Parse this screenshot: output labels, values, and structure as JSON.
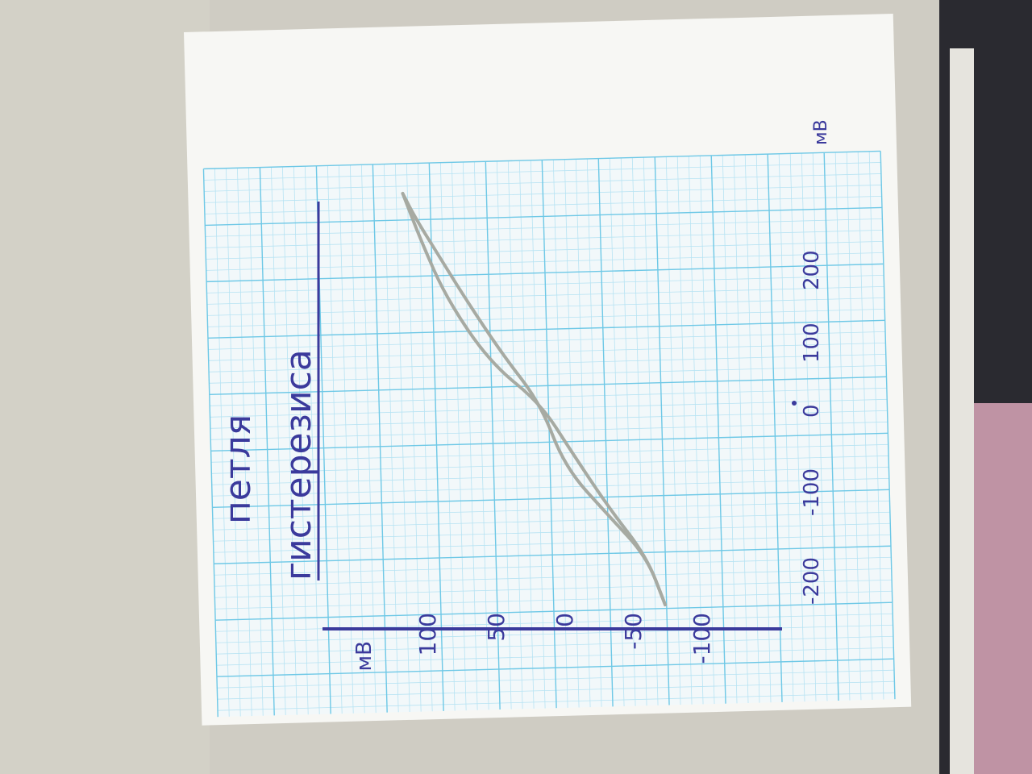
{
  "note": {
    "title_line1": "петля",
    "title_line2": "гистерезиса"
  },
  "chart_data": {
    "type": "line",
    "title": "петля гистерезиса",
    "xlabel": "мВ",
    "ylabel": "мВ",
    "x_ticks": [
      "-200",
      "-100",
      "0",
      "100",
      "200"
    ],
    "y_ticks": [
      "100",
      "50",
      "0",
      "-50",
      "-100"
    ],
    "xlim": [
      -300,
      300
    ],
    "ylim": [
      -110,
      110
    ],
    "series": [
      {
        "points": [
          [
            -250,
            -100
          ],
          [
            -190,
            -85
          ],
          [
            -140,
            -55
          ],
          [
            -80,
            -20
          ],
          [
            0,
            0
          ],
          [
            60,
            30
          ],
          [
            130,
            60
          ],
          [
            180,
            80
          ],
          [
            230,
            100
          ],
          [
            260,
            110
          ]
        ]
      },
      {
        "points": [
          [
            260,
            110
          ],
          [
            200,
            95
          ],
          [
            130,
            75
          ],
          [
            50,
            40
          ],
          [
            0,
            0
          ],
          [
            -60,
            -25
          ],
          [
            -130,
            -55
          ],
          [
            -190,
            -85
          ],
          [
            -250,
            -100
          ]
        ]
      }
    ]
  },
  "colors": {
    "paper": "#f7f7f4",
    "grid_major": "#6ec8e6",
    "grid_minor": "#b7e3f3",
    "ink": "#3b3a9c",
    "curve": "#a7aaa2",
    "background": "#cfccc3",
    "dark_object": "#1f1f24",
    "fabric": "#d9a6b8"
  },
  "icons": {
    "photo": "handwritten-graph-paper-photo"
  }
}
